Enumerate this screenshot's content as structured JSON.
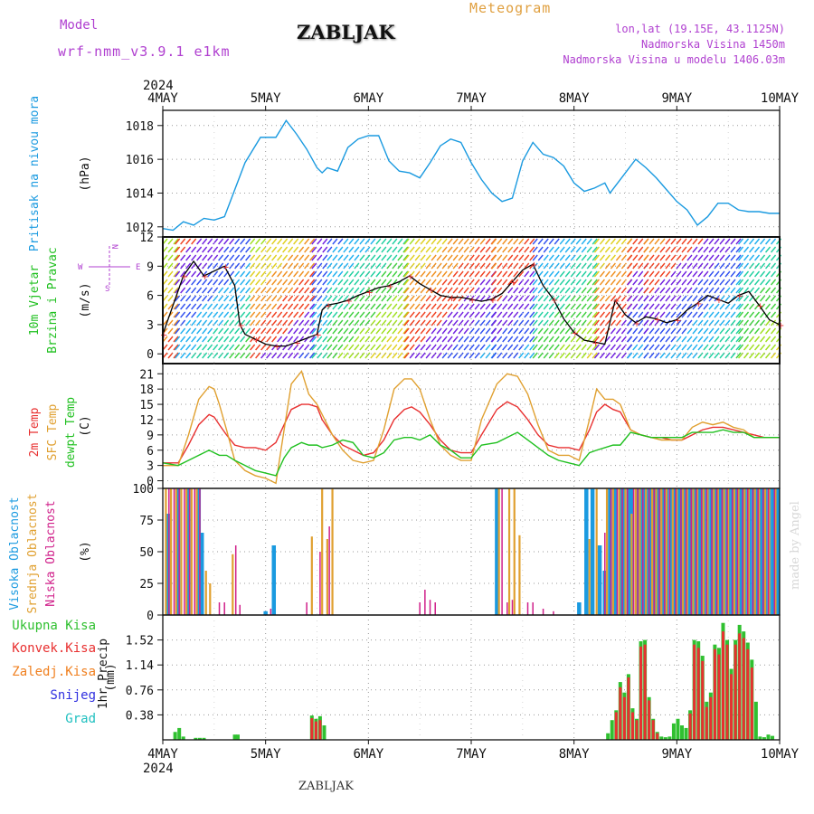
{
  "header": {
    "model_label": "Model",
    "model_name": "wrf-nmm_v3.9.1 e1km",
    "station": "ZABLJAK",
    "product": "Meteogram",
    "coords": "lon,lat (19.15E, 43.1125N)",
    "elevation": "Nadmorska Visina 1450m",
    "model_elevation": "Nadmorska Visina u modelu 1406.03m",
    "footer_station": "ZABLJAK",
    "credit": "made by Angel"
  },
  "colors": {
    "pressure": "#1a9ae0",
    "temp2m": "#e83030",
    "sfc_temp": "#e0a030",
    "dewpt": "#20c020",
    "high_cloud": "#1a9ae0",
    "mid_cloud": "#e0a030",
    "low_cloud": "#d0208a",
    "total_rain": "#30c030",
    "convective_rain": "#e83030",
    "freezing_rain": "#f08020",
    "snow": "#3030e0",
    "hail": "#20c0c0",
    "purple_text": "#b040d0",
    "orange_text": "#e0a040"
  },
  "time_axis": {
    "year": "2024",
    "labels": [
      "4MAY",
      "5MAY",
      "6MAY",
      "7MAY",
      "8MAY",
      "9MAY",
      "10MAY"
    ]
  },
  "chart_data": [
    {
      "type": "line",
      "panel": "pressure",
      "ylabel": "Pritisak na nivou mora",
      "unit": "(hPa)",
      "yticks": [
        1012,
        1014,
        1016,
        1018
      ],
      "ylim": [
        1011.4,
        1018.9
      ],
      "x": [
        0,
        0.1,
        0.2,
        0.3,
        0.4,
        0.5,
        0.6,
        0.8,
        0.95,
        1.1,
        1.2,
        1.3,
        1.4,
        1.5,
        1.55,
        1.6,
        1.7,
        1.8,
        1.9,
        2.0,
        2.1,
        2.2,
        2.3,
        2.4,
        2.5,
        2.6,
        2.7,
        2.8,
        2.9,
        3.0,
        3.1,
        3.2,
        3.3,
        3.4,
        3.5,
        3.6,
        3.7,
        3.8,
        3.9,
        4.0,
        4.1,
        4.2,
        4.3,
        4.35,
        4.5,
        4.6,
        4.7,
        4.8,
        4.9,
        5.0,
        5.1,
        5.2,
        5.3,
        5.4,
        5.5,
        5.6,
        5.7,
        5.8,
        5.9,
        6.0
      ],
      "values": [
        1011.9,
        1011.8,
        1012.3,
        1012.1,
        1012.5,
        1012.4,
        1012.6,
        1015.8,
        1017.3,
        1017.3,
        1018.3,
        1017.5,
        1016.6,
        1015.5,
        1015.2,
        1015.5,
        1015.3,
        1016.7,
        1017.2,
        1017.4,
        1017.4,
        1015.9,
        1015.3,
        1015.2,
        1014.9,
        1015.8,
        1016.8,
        1017.2,
        1017.0,
        1015.8,
        1014.8,
        1014.0,
        1013.5,
        1013.7,
        1015.9,
        1017.0,
        1016.3,
        1016.1,
        1015.6,
        1014.6,
        1014.1,
        1014.3,
        1014.6,
        1014.0,
        1015.2,
        1016.0,
        1015.5,
        1014.9,
        1014.2,
        1013.5,
        1013.0,
        1012.1,
        1012.6,
        1013.4,
        1013.4,
        1013.0,
        1012.9,
        1012.9,
        1012.8,
        1012.8
      ]
    },
    {
      "type": "line",
      "panel": "wind",
      "ylabel": "10m Vjetar Brzina i Pravac",
      "unit": "(m/s)",
      "compass": {
        "n": "N",
        "s": "S",
        "e": "E",
        "w": "W"
      },
      "yticks": [
        0,
        3,
        6,
        9,
        12
      ],
      "ylim": [
        -1,
        12
      ],
      "x": [
        0,
        0.1,
        0.2,
        0.3,
        0.4,
        0.5,
        0.6,
        0.7,
        0.75,
        0.8,
        0.9,
        1.0,
        1.1,
        1.2,
        1.3,
        1.4,
        1.5,
        1.55,
        1.6,
        1.7,
        1.8,
        1.9,
        2.0,
        2.1,
        2.2,
        2.3,
        2.4,
        2.5,
        2.6,
        2.7,
        2.8,
        2.9,
        3.0,
        3.1,
        3.2,
        3.3,
        3.4,
        3.5,
        3.6,
        3.7,
        3.8,
        3.9,
        4.0,
        4.1,
        4.2,
        4.3,
        4.4,
        4.5,
        4.6,
        4.7,
        4.8,
        4.9,
        5.0,
        5.1,
        5.2,
        5.3,
        5.4,
        5.5,
        5.6,
        5.7,
        5.8,
        5.9,
        6.0
      ],
      "values": [
        2,
        5,
        8,
        9.5,
        8,
        8.5,
        9,
        7,
        3,
        2,
        1.5,
        1,
        0.8,
        0.8,
        1.2,
        1.6,
        2,
        4.5,
        5,
        5.2,
        5.5,
        6,
        6.4,
        6.8,
        7,
        7.4,
        8,
        7.2,
        6.6,
        6,
        5.8,
        5.8,
        5.6,
        5.4,
        5.6,
        6.2,
        7.4,
        8.6,
        9.2,
        7,
        5.6,
        3.6,
        2.2,
        1.4,
        1.2,
        1.0,
        5.5,
        4,
        3.2,
        3.8,
        3.6,
        3.2,
        3.5,
        4.5,
        5.2,
        6,
        5.6,
        5.2,
        6,
        6.4,
        5,
        3.5,
        3
      ]
    },
    {
      "type": "line",
      "panel": "temperature",
      "unit": "(C)",
      "yticks": [
        0,
        3,
        6,
        9,
        12,
        15,
        18,
        21
      ],
      "ylim": [
        -1.5,
        23
      ],
      "x": [
        0,
        0.15,
        0.25,
        0.35,
        0.45,
        0.5,
        0.55,
        0.62,
        0.7,
        0.8,
        0.9,
        1.0,
        1.1,
        1.18,
        1.25,
        1.35,
        1.42,
        1.5,
        1.55,
        1.65,
        1.75,
        1.85,
        1.95,
        2.05,
        2.15,
        2.25,
        2.35,
        2.42,
        2.5,
        2.6,
        2.7,
        2.8,
        2.9,
        3.0,
        3.1,
        3.25,
        3.35,
        3.45,
        3.55,
        3.65,
        3.75,
        3.85,
        3.95,
        4.05,
        4.15,
        4.22,
        4.3,
        4.38,
        4.45,
        4.55,
        4.65,
        4.75,
        4.85,
        4.95,
        5.05,
        5.15,
        5.25,
        5.35,
        5.45,
        5.55,
        5.65,
        5.75,
        5.85,
        5.95,
        6.0
      ],
      "series": [
        {
          "name": "2m Temp",
          "values": [
            3.5,
            3.5,
            7,
            11,
            13,
            12.5,
            11,
            9,
            7,
            6.5,
            6.5,
            6,
            7.5,
            11,
            14,
            15,
            15,
            14.5,
            12,
            9,
            7,
            6,
            5,
            5.5,
            8,
            12,
            14,
            14.5,
            13.5,
            11,
            8,
            6,
            5.5,
            5.5,
            9,
            14,
            15.5,
            14.5,
            12,
            9,
            7,
            6.5,
            6.5,
            6,
            10,
            13.5,
            15,
            14,
            13.5,
            10,
            9,
            8.5,
            8.5,
            8,
            8,
            9,
            10,
            10.5,
            10.5,
            10,
            9.5,
            9,
            8.5,
            8.5,
            8.5
          ]
        },
        {
          "name": "SFC Temp",
          "values": [
            3,
            3,
            9,
            16,
            18.5,
            18,
            15,
            10,
            4,
            2,
            1,
            0.5,
            -0.5,
            10,
            19,
            21.5,
            17,
            15,
            13,
            9,
            6,
            4,
            3.5,
            4,
            10,
            18,
            20,
            20,
            18,
            12,
            7,
            5,
            4,
            4,
            12,
            19,
            21,
            20.5,
            17,
            11,
            6,
            5,
            5,
            4,
            12,
            18,
            16,
            16,
            15,
            10,
            9,
            8.5,
            8,
            8,
            8,
            10.5,
            11.5,
            11,
            11.5,
            10.5,
            10,
            8.5,
            8.5,
            8.5,
            8.5
          ]
        },
        {
          "name": "dewpt Temp",
          "values": [
            3.5,
            3,
            4,
            5,
            6,
            5.5,
            5,
            5,
            4,
            3,
            2,
            1.5,
            1,
            4.5,
            6.5,
            7.5,
            7,
            7,
            6.5,
            7,
            8,
            7.5,
            5,
            4.5,
            5.5,
            8,
            8.5,
            8.5,
            8,
            9,
            7,
            6,
            4.5,
            4.5,
            7,
            7.5,
            8.5,
            9.5,
            8,
            6.5,
            5,
            4,
            3.5,
            3,
            5.5,
            6,
            6.5,
            7,
            7,
            9.5,
            9,
            8.5,
            8.5,
            8.5,
            8.5,
            9.5,
            9.5,
            9.5,
            10,
            9.5,
            9.5,
            8.5,
            8.5,
            8.5,
            8.5
          ]
        }
      ]
    },
    {
      "type": "bar",
      "panel": "cloud",
      "unit": "(%)",
      "yticks": [
        0,
        25,
        50,
        75,
        100
      ],
      "ylim": [
        0,
        100
      ],
      "series": [
        {
          "name": "Visoka Oblacnost",
          "x": [
            0.05,
            0.15,
            0.25,
            0.35,
            0.38,
            1.0,
            1.08,
            3.25,
            4.05,
            4.12,
            4.18,
            4.25,
            4.3,
            4.35,
            4.4,
            4.45,
            4.48,
            4.53,
            4.56,
            4.62,
            4.66,
            4.7,
            4.74,
            4.78,
            4.82,
            4.86,
            4.9,
            4.94,
            4.98,
            5.02,
            5.06,
            5.1,
            5.14,
            5.18,
            5.22,
            5.26,
            5.3,
            5.34,
            5.38,
            5.42,
            5.46,
            5.5,
            5.54,
            5.58,
            5.62,
            5.66,
            5.7,
            5.74,
            5.78,
            5.82,
            5.86,
            5.9,
            5.94,
            5.98
          ],
          "values": [
            80,
            100,
            100,
            100,
            65,
            3,
            55,
            100,
            10,
            100,
            100,
            55,
            35,
            100,
            100,
            100,
            100,
            100,
            100,
            100,
            100,
            100,
            100,
            100,
            100,
            100,
            100,
            100,
            100,
            100,
            100,
            100,
            100,
            100,
            100,
            100,
            100,
            100,
            100,
            100,
            100,
            100,
            100,
            100,
            100,
            100,
            100,
            100,
            100,
            100,
            100,
            100,
            100,
            100
          ]
        },
        {
          "name": "Srednja Oblacnost",
          "x": [
            0.03,
            0.08,
            0.13,
            0.18,
            0.23,
            0.28,
            0.33,
            0.42,
            0.46,
            0.68,
            1.45,
            1.55,
            1.6,
            1.65,
            3.27,
            3.37,
            3.42,
            3.47,
            4.15,
            4.22,
            4.32,
            4.38,
            4.44,
            4.5,
            4.56,
            4.6,
            4.64,
            4.7,
            4.76,
            4.8,
            4.85,
            4.9,
            4.96,
            5.0,
            5.06,
            5.1,
            5.16,
            5.2,
            5.26,
            5.3,
            5.36,
            5.4,
            5.46,
            5.5,
            5.56,
            5.6,
            5.66,
            5.7,
            5.76,
            5.8,
            5.86,
            5.9,
            5.96
          ],
          "values": [
            100,
            100,
            100,
            100,
            100,
            100,
            100,
            35,
            25,
            48,
            62,
            100,
            60,
            100,
            100,
            100,
            100,
            63,
            60,
            100,
            100,
            100,
            100,
            100,
            80,
            100,
            100,
            100,
            100,
            100,
            100,
            100,
            100,
            100,
            100,
            100,
            100,
            100,
            100,
            100,
            100,
            100,
            100,
            100,
            100,
            100,
            100,
            100,
            100,
            100,
            100,
            100,
            100
          ]
        },
        {
          "name": "Niska Oblacnost",
          "x": [
            0.06,
            0.11,
            0.16,
            0.21,
            0.26,
            0.31,
            0.36,
            0.55,
            0.6,
            0.71,
            0.75,
            1.05,
            1.4,
            1.53,
            1.62,
            2.5,
            2.55,
            2.6,
            2.65,
            3.3,
            3.35,
            3.4,
            3.55,
            3.6,
            3.7,
            3.8,
            4.3,
            4.36,
            4.42,
            4.47,
            4.52,
            4.58,
            4.62,
            4.67,
            4.73,
            4.78,
            4.83,
            4.88,
            4.93,
            4.99,
            5.04,
            5.09,
            5.14,
            5.19,
            5.24,
            5.29,
            5.34,
            5.39,
            5.44,
            5.49,
            5.54,
            5.59,
            5.64,
            5.69,
            5.74,
            5.79,
            5.84,
            5.89,
            5.95
          ],
          "values": [
            100,
            100,
            100,
            100,
            100,
            100,
            100,
            10,
            10,
            55,
            8,
            5,
            10,
            50,
            70,
            10,
            20,
            12,
            10,
            100,
            10,
            12,
            10,
            10,
            5,
            3,
            65,
            100,
            100,
            100,
            100,
            100,
            100,
            100,
            100,
            100,
            100,
            100,
            100,
            100,
            100,
            100,
            100,
            100,
            100,
            100,
            100,
            100,
            100,
            100,
            100,
            100,
            100,
            100,
            100,
            100,
            100,
            100,
            100
          ]
        }
      ]
    },
    {
      "type": "bar",
      "panel": "precip",
      "ylabel": "1hr Precip",
      "unit": "(mm)",
      "yticks": [
        0.38,
        0.76,
        1.14,
        1.52
      ],
      "ylim": [
        0,
        1.9
      ],
      "series": [
        {
          "name": "Ukupna Kisa",
          "x": [
            0.12,
            0.16,
            0.2,
            0.32,
            0.36,
            0.4,
            0.7,
            0.73,
            1.45,
            1.49,
            1.53,
            1.57,
            4.33,
            4.37,
            4.41,
            4.45,
            4.49,
            4.53,
            4.57,
            4.61,
            4.65,
            4.69,
            4.73,
            4.77,
            4.81,
            4.85,
            4.89,
            4.93,
            4.97,
            5.01,
            5.05,
            5.09,
            5.13,
            5.17,
            5.21,
            5.25,
            5.29,
            5.33,
            5.37,
            5.41,
            5.45,
            5.49,
            5.53,
            5.57,
            5.61,
            5.65,
            5.69,
            5.73,
            5.77,
            5.81,
            5.85,
            5.89,
            5.93
          ],
          "values": [
            0.12,
            0.18,
            0.05,
            0.03,
            0.03,
            0.03,
            0.08,
            0.08,
            0.37,
            0.32,
            0.36,
            0.22,
            0.1,
            0.3,
            0.45,
            0.88,
            0.72,
            1.0,
            0.48,
            0.32,
            1.5,
            1.52,
            0.65,
            0.32,
            0.12,
            0.05,
            0.04,
            0.05,
            0.25,
            0.32,
            0.22,
            0.18,
            0.45,
            1.52,
            1.5,
            1.28,
            0.58,
            0.72,
            1.45,
            1.4,
            1.78,
            1.52,
            1.08,
            1.52,
            1.75,
            1.65,
            1.48,
            1.22,
            0.58,
            0.05,
            0.04,
            0.08,
            0.06
          ]
        },
        {
          "name": "Konvek.Kisa",
          "x": [
            1.45,
            1.49,
            1.53,
            4.41,
            4.45,
            4.49,
            4.53,
            4.57,
            4.61,
            4.65,
            4.69,
            4.73,
            4.77,
            4.81,
            5.13,
            5.17,
            5.21,
            5.25,
            5.29,
            5.33,
            5.37,
            5.41,
            5.45,
            5.49,
            5.53,
            5.57,
            5.61,
            5.65,
            5.69,
            5.73
          ],
          "values": [
            0.33,
            0.28,
            0.3,
            0.42,
            0.8,
            0.65,
            0.95,
            0.42,
            0.3,
            1.42,
            1.45,
            0.6,
            0.3,
            0.1,
            0.4,
            1.45,
            1.4,
            1.2,
            0.5,
            0.65,
            1.38,
            1.3,
            1.65,
            1.45,
            1.0,
            1.45,
            1.62,
            1.55,
            1.38,
            1.1
          ]
        }
      ]
    }
  ],
  "legends": {
    "pressure": [
      "Pritisak na nivou mora"
    ],
    "wind": [
      "10m Vjetar",
      "Brzina i Pravac"
    ],
    "temperature": [
      "2m Temp",
      "SFC Temp",
      "dewpt Temp"
    ],
    "cloud": [
      "Visoka Oblacnost",
      "Srednja Oblacnost",
      "Niska Oblacnost"
    ],
    "precip": [
      "Ukupna Kisa",
      "Konvek.Kisa",
      "Zaledj.Kisa",
      "Snijeg",
      "Grad"
    ]
  }
}
